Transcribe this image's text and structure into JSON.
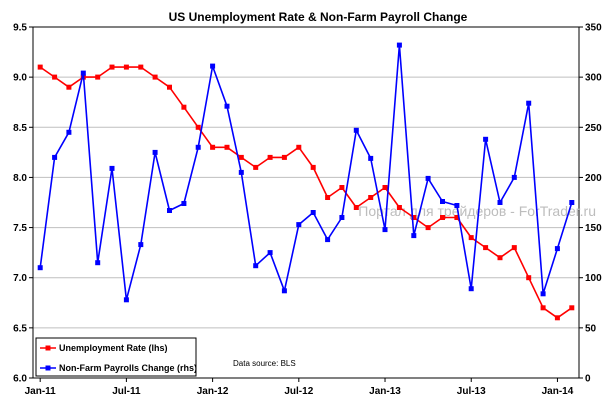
{
  "chart_data": {
    "type": "line",
    "title": "US Unemployment Rate & Non-Farm Payroll Change",
    "source_note": "Data source: BLS",
    "watermark": "Портал для трейдеров - ForTrader.ru",
    "x_tick_labels": [
      "Jan-11",
      "Jul-11",
      "Jan-12",
      "Jul-12",
      "Jan-13",
      "Jul-13",
      "Jan-14"
    ],
    "x_range": [
      "Jan-11",
      "Mar-14"
    ],
    "y_left": {
      "min": 6.0,
      "max": 9.5,
      "step": 0.5,
      "tick_labels": [
        "6.0",
        "6.5",
        "7.0",
        "7.5",
        "8.0",
        "8.5",
        "9.0",
        "9.5"
      ]
    },
    "y_right": {
      "min": 0,
      "max": 350,
      "step": 50,
      "tick_labels": [
        "0",
        "50",
        "100",
        "150",
        "200",
        "250",
        "300",
        "350"
      ]
    },
    "grid": true,
    "legend_position": "bottom-left",
    "series": [
      {
        "name": "Unemployment Rate (lhs)",
        "axis": "left",
        "color": "#ff0000",
        "marker": "square",
        "values": [
          9.1,
          9.0,
          8.9,
          9.0,
          9.0,
          9.1,
          9.1,
          9.1,
          9.0,
          8.9,
          8.7,
          8.5,
          8.3,
          8.3,
          8.2,
          8.1,
          8.2,
          8.2,
          8.3,
          8.1,
          7.8,
          7.9,
          7.7,
          7.8,
          7.9,
          7.7,
          7.6,
          7.5,
          7.6,
          7.6,
          7.4,
          7.3,
          7.2,
          7.3,
          7.0,
          6.7,
          6.6,
          6.7
        ]
      },
      {
        "name": "Non-Farm Payrolls Change (rhs)",
        "axis": "right",
        "color": "#0000ff",
        "marker": "square",
        "values": [
          110,
          220,
          245,
          304,
          115,
          209,
          78,
          133,
          225,
          167,
          174,
          230,
          311,
          271,
          205,
          112,
          125,
          87,
          153,
          165,
          138,
          160,
          247,
          219,
          148,
          332,
          142,
          199,
          176,
          172,
          89,
          238,
          175,
          200,
          274,
          84,
          129,
          175
        ]
      }
    ]
  }
}
